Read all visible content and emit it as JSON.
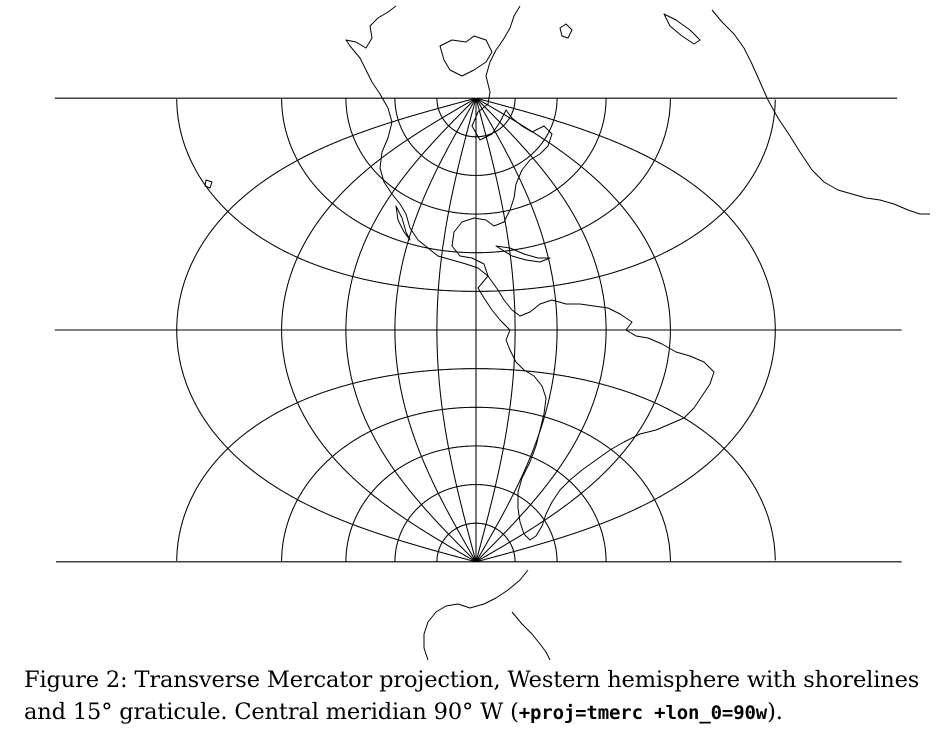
{
  "caption": {
    "prefix": "Figure 2:",
    "text": "Transverse Mercator projection, Western hemisphere with shorelines and 15° graticule. Central meridian 90° W (",
    "code": "+proj=tmerc +lon_0=90w",
    "suffix": ")."
  },
  "map": {
    "projection": "Transverse Mercator",
    "central_meridian_deg": -90,
    "graticule_step_deg": 15,
    "hemisphere": "Western",
    "line_color": "#000000",
    "background_color": "#ffffff",
    "features": [
      "shorelines",
      "graticule"
    ]
  }
}
